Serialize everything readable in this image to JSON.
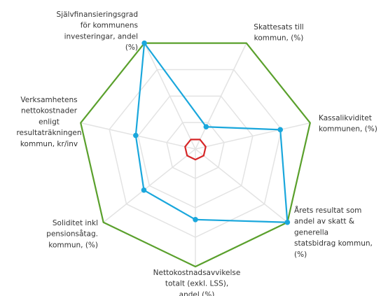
{
  "chart_data": {
    "type": "radar",
    "categories": [
      [
        "Självfinansieringsgrad",
        "för kommunens",
        "investeringar, andel",
        "(%)"
      ],
      [
        "Skattesats till",
        "kommun, (%)"
      ],
      [
        "Kassalikviditet",
        "kommunen, (%)"
      ],
      [
        "Årets resultat som",
        "andel av skatt &",
        "generella",
        "statsbidrag kommun,",
        "(%)"
      ],
      [
        "Nettokostnadsavvikelse",
        "totalt (exkl. LSS),",
        "andel (%)"
      ],
      [
        "Soliditet inkl",
        "pensionsåtag.",
        "kommun, (%)"
      ],
      [
        "Verksamhetens",
        "nettokostnader",
        "enligt",
        "resultaträkningen",
        "kommun, kr/inv"
      ]
    ],
    "series": [
      {
        "color": "#5aa02c",
        "values": [
          100,
          100,
          100,
          100,
          100,
          100,
          100
        ]
      },
      {
        "color": "#d62728",
        "values": [
          9,
          9,
          9,
          9,
          9,
          9,
          9
        ]
      },
      {
        "color": "#1aa7dc",
        "values": [
          100,
          21,
          74,
          100,
          60,
          56,
          52
        ],
        "markers": true
      }
    ],
    "ylim": [
      0,
      100
    ],
    "yticks": [
      25,
      50,
      75
    ],
    "grid": true
  }
}
